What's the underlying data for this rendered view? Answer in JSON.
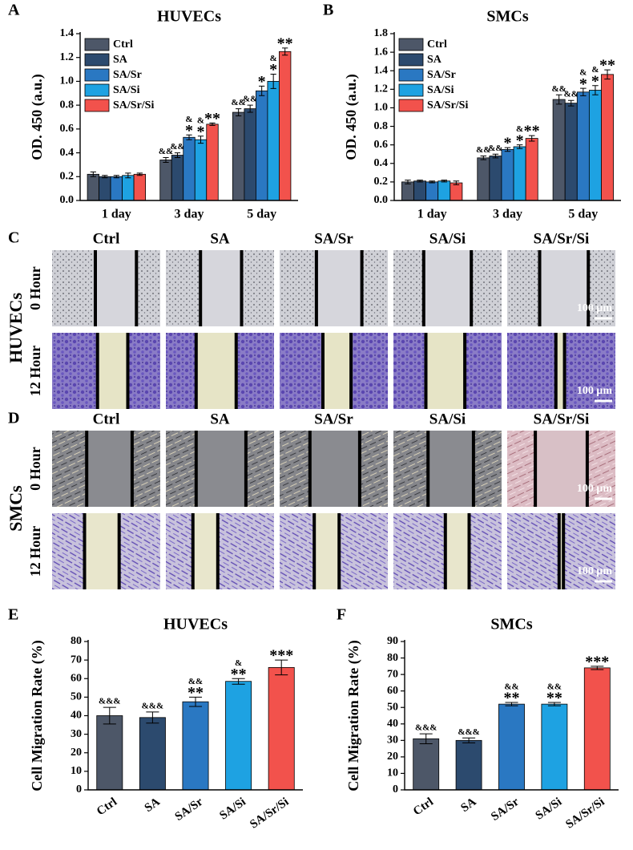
{
  "chart_data": [
    {
      "type": "bar",
      "panel": "A",
      "title": "HUVECs",
      "ylabel": "OD. 450 (a.u.)",
      "categories": [
        "1 day",
        "3 day",
        "5 day"
      ],
      "ylim": [
        0,
        1.4
      ],
      "yticks": [
        {
          "value": 0,
          "label": "0.0"
        },
        0.2,
        0.4,
        0.6,
        0.8,
        {
          "value": 1,
          "label": "1.0"
        },
        1.2,
        1.4
      ],
      "legend": "upper left",
      "series": [
        {
          "name": "Ctrl",
          "color": "#4d5768",
          "values": [
            0.22,
            0.34,
            0.74
          ],
          "errors": [
            0.02,
            0.02,
            0.03
          ],
          "annotations": [
            null,
            [
              "&&"
            ],
            [
              "&&"
            ]
          ]
        },
        {
          "name": "SA",
          "color": "#2c4a6e",
          "values": [
            0.2,
            0.38,
            0.77
          ],
          "errors": [
            0.01,
            0.02,
            0.03
          ],
          "annotations": [
            null,
            [
              "&&"
            ],
            [
              "&&"
            ]
          ]
        },
        {
          "name": "SA/Sr",
          "color": "#2a78c2",
          "values": [
            0.2,
            0.53,
            0.92
          ],
          "errors": [
            0.01,
            0.02,
            0.04
          ],
          "annotations": [
            null,
            [
              "&",
              "*"
            ],
            [
              "*"
            ]
          ]
        },
        {
          "name": "SA/Si",
          "color": "#1ea2e2",
          "values": [
            0.21,
            0.51,
            1.0
          ],
          "errors": [
            0.02,
            0.03,
            0.06
          ],
          "annotations": [
            null,
            [
              "&",
              "*"
            ],
            [
              "&",
              "*"
            ]
          ]
        },
        {
          "name": "SA/Sr/Si",
          "color": "#f2524c",
          "values": [
            0.22,
            0.64,
            1.25
          ],
          "errors": [
            0.01,
            0.01,
            0.03
          ],
          "annotations": [
            null,
            [
              "**"
            ],
            [
              "**"
            ]
          ]
        }
      ]
    },
    {
      "type": "bar",
      "panel": "B",
      "title": "SMCs",
      "ylabel": "OD. 450 (a.u.)",
      "categories": [
        "1 day",
        "3 day",
        "5 day"
      ],
      "ylim": [
        0,
        1.8
      ],
      "yticks": [
        {
          "value": 0,
          "label": "0.0"
        },
        0.2,
        0.4,
        0.6,
        0.8,
        {
          "value": 1,
          "label": "1.0"
        },
        1.2,
        1.4,
        1.6,
        1.8
      ],
      "legend": "upper left",
      "series": [
        {
          "name": "Ctrl",
          "color": "#4d5768",
          "values": [
            0.2,
            0.46,
            1.09
          ],
          "errors": [
            0.02,
            0.02,
            0.05
          ],
          "annotations": [
            null,
            [
              "&&"
            ],
            [
              "&&"
            ]
          ]
        },
        {
          "name": "SA",
          "color": "#2c4a6e",
          "values": [
            0.21,
            0.48,
            1.05
          ],
          "errors": [
            0.01,
            0.02,
            0.03
          ],
          "annotations": [
            null,
            [
              "&&"
            ],
            [
              "&&"
            ]
          ]
        },
        {
          "name": "SA/Sr",
          "color": "#2a78c2",
          "values": [
            0.2,
            0.55,
            1.17
          ],
          "errors": [
            0.01,
            0.02,
            0.04
          ],
          "annotations": [
            null,
            [
              "*"
            ],
            [
              "&",
              "*"
            ]
          ]
        },
        {
          "name": "SA/Si",
          "color": "#1ea2e2",
          "values": [
            0.21,
            0.58,
            1.19
          ],
          "errors": [
            0.01,
            0.02,
            0.05
          ],
          "annotations": [
            null,
            [
              "&",
              "*"
            ],
            [
              "&",
              "*"
            ]
          ]
        },
        {
          "name": "SA/Sr/Si",
          "color": "#f2524c",
          "values": [
            0.19,
            0.67,
            1.36
          ],
          "errors": [
            0.02,
            0.03,
            0.05
          ],
          "annotations": [
            null,
            [
              "**"
            ],
            [
              "**"
            ]
          ]
        }
      ]
    },
    {
      "type": "bar",
      "panel": "E",
      "title": "HUVECs",
      "ylabel": "Cell Migration Rate (%)",
      "categories": [
        "Ctrl",
        "SA",
        "SA/Sr",
        "SA/Si",
        "SA/Sr/Si"
      ],
      "values": [
        40,
        39,
        47.5,
        58.5,
        66
      ],
      "errors": [
        4.5,
        3,
        2.5,
        1.5,
        4
      ],
      "colors": [
        "#4d5768",
        "#2c4a6e",
        "#2a78c2",
        "#1ea2e2",
        "#f2524c"
      ],
      "annotations": [
        [
          "&&&"
        ],
        [
          "&&&"
        ],
        [
          "&&",
          "**"
        ],
        [
          "&",
          "**"
        ],
        [
          "***"
        ]
      ],
      "ylim": [
        0,
        80
      ],
      "yticks": [
        0,
        10,
        20,
        30,
        40,
        50,
        60,
        70,
        80
      ]
    },
    {
      "type": "bar",
      "panel": "F",
      "title": "SMCs",
      "ylabel": "Cell Migration Rate (%)",
      "categories": [
        "Ctrl",
        "SA",
        "SA/Sr",
        "SA/Si",
        "SA/Sr/Si"
      ],
      "values": [
        31,
        30,
        52,
        52,
        74
      ],
      "errors": [
        3,
        1.5,
        1,
        1,
        1
      ],
      "colors": [
        "#4d5768",
        "#2c4a6e",
        "#2a78c2",
        "#1ea2e2",
        "#f2524c"
      ],
      "annotations": [
        [
          "&&&"
        ],
        [
          "&&&"
        ],
        [
          "&&",
          "**"
        ],
        [
          "&&",
          "**"
        ],
        [
          "***"
        ]
      ],
      "ylim": [
        0,
        90
      ],
      "yticks": [
        0,
        10,
        20,
        30,
        40,
        50,
        60,
        70,
        80,
        90
      ]
    }
  ],
  "image_panels": [
    {
      "panel": "C",
      "group": "HUVECs",
      "columns": [
        "Ctrl",
        "SA",
        "SA/Sr",
        "SA/Si",
        "SA/Sr/Si"
      ],
      "rows": [
        "0 Hour",
        "12 Hour"
      ],
      "scale_bar": "100 μm"
    },
    {
      "panel": "D",
      "group": "SMCs",
      "columns": [
        "Ctrl",
        "SA",
        "SA/Sr",
        "SA/Si",
        "SA/Sr/Si"
      ],
      "rows": [
        "0 Hour",
        "12 Hour"
      ],
      "scale_bar": "100 μm"
    }
  ]
}
